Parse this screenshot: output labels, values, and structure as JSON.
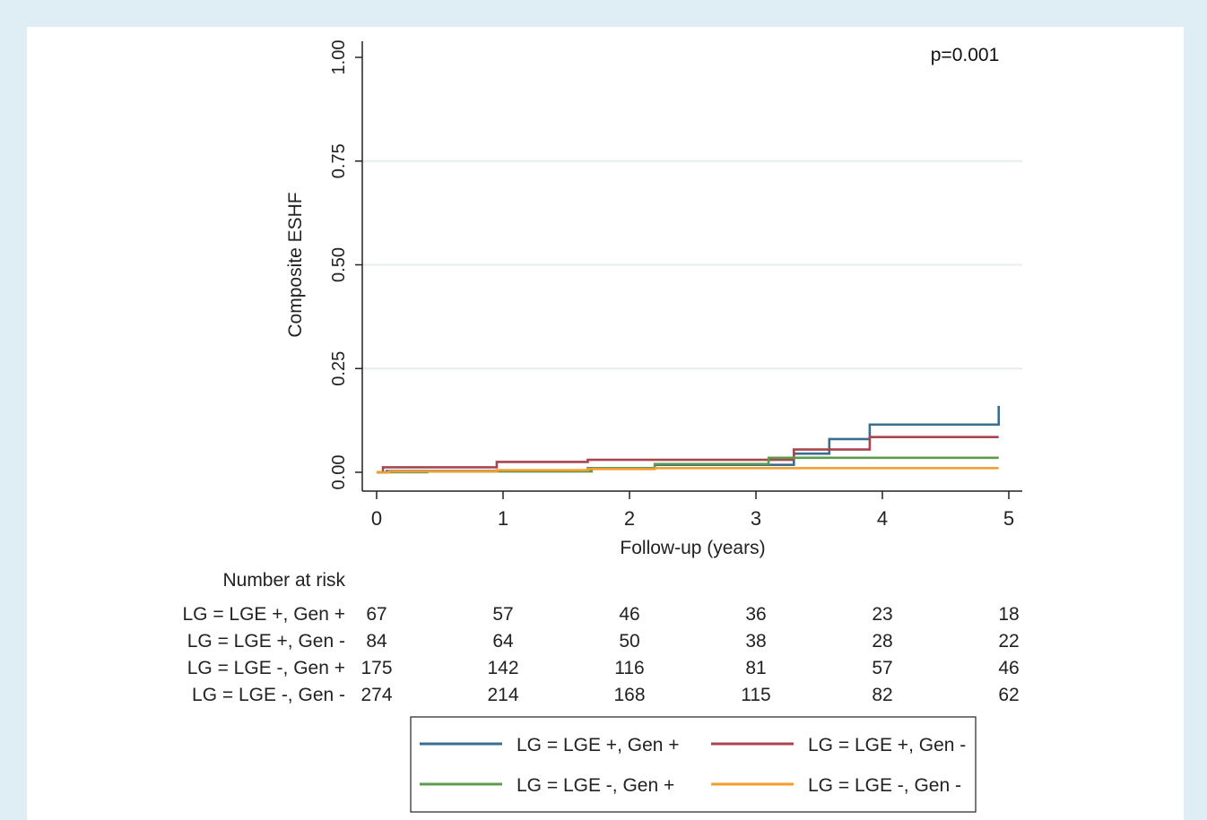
{
  "chart_data": {
    "type": "line",
    "step": true,
    "ylabel": "Composite ESHF",
    "xlabel": "Follow-up (years)",
    "annotation": "p=0.001",
    "xlim": [
      0,
      5
    ],
    "ylim": [
      0,
      1
    ],
    "x_ticks": [
      "0",
      "1",
      "2",
      "3",
      "4",
      "5"
    ],
    "y_ticks": [
      "0.00",
      "0.25",
      "0.50",
      "0.75",
      "1.00"
    ],
    "grid": true,
    "legend_position": "bottom",
    "series": [
      {
        "name": "LG = LGE +, Gen +",
        "color": "#3a6e8f",
        "x": [
          0,
          0.08,
          1.67,
          2.2,
          3.3,
          3.58,
          3.9,
          4.92,
          4.92
        ],
        "y": [
          0,
          0.003,
          0.01,
          0.018,
          0.045,
          0.08,
          0.115,
          0.115,
          0.16
        ]
      },
      {
        "name": "LG = LGE +, Gen -",
        "color": "#a8454f",
        "x": [
          0,
          0.05,
          0.95,
          1.67,
          3.3,
          3.9,
          4.92
        ],
        "y": [
          0,
          0.012,
          0.025,
          0.03,
          0.055,
          0.085,
          0.085
        ]
      },
      {
        "name": "LG = LGE -, Gen +",
        "color": "#5b9c4c",
        "x": [
          0,
          0.4,
          1.7,
          2.2,
          3.1,
          4.92
        ],
        "y": [
          0,
          0.002,
          0.01,
          0.02,
          0.035,
          0.035
        ]
      },
      {
        "name": "LG = LGE -, Gen -",
        "color": "#f49b2a",
        "x": [
          0,
          0.1,
          0.95,
          1.67,
          2.2,
          4.92
        ],
        "y": [
          0,
          0.002,
          0.005,
          0.008,
          0.01,
          0.01
        ]
      }
    ],
    "risk_table": {
      "title": "Number at risk",
      "rows": [
        {
          "label": "LG = LGE +, Gen +",
          "values": [
            "67",
            "57",
            "46",
            "36",
            "23",
            "18"
          ]
        },
        {
          "label": "LG = LGE +, Gen -",
          "values": [
            "84",
            "64",
            "50",
            "38",
            "28",
            "22"
          ]
        },
        {
          "label": "LG = LGE -, Gen +",
          "values": [
            "175",
            "142",
            "116",
            "81",
            "57",
            "46"
          ]
        },
        {
          "label": "LG = LGE -, Gen -",
          "values": [
            "274",
            "214",
            "168",
            "115",
            "82",
            "62"
          ]
        }
      ]
    }
  }
}
